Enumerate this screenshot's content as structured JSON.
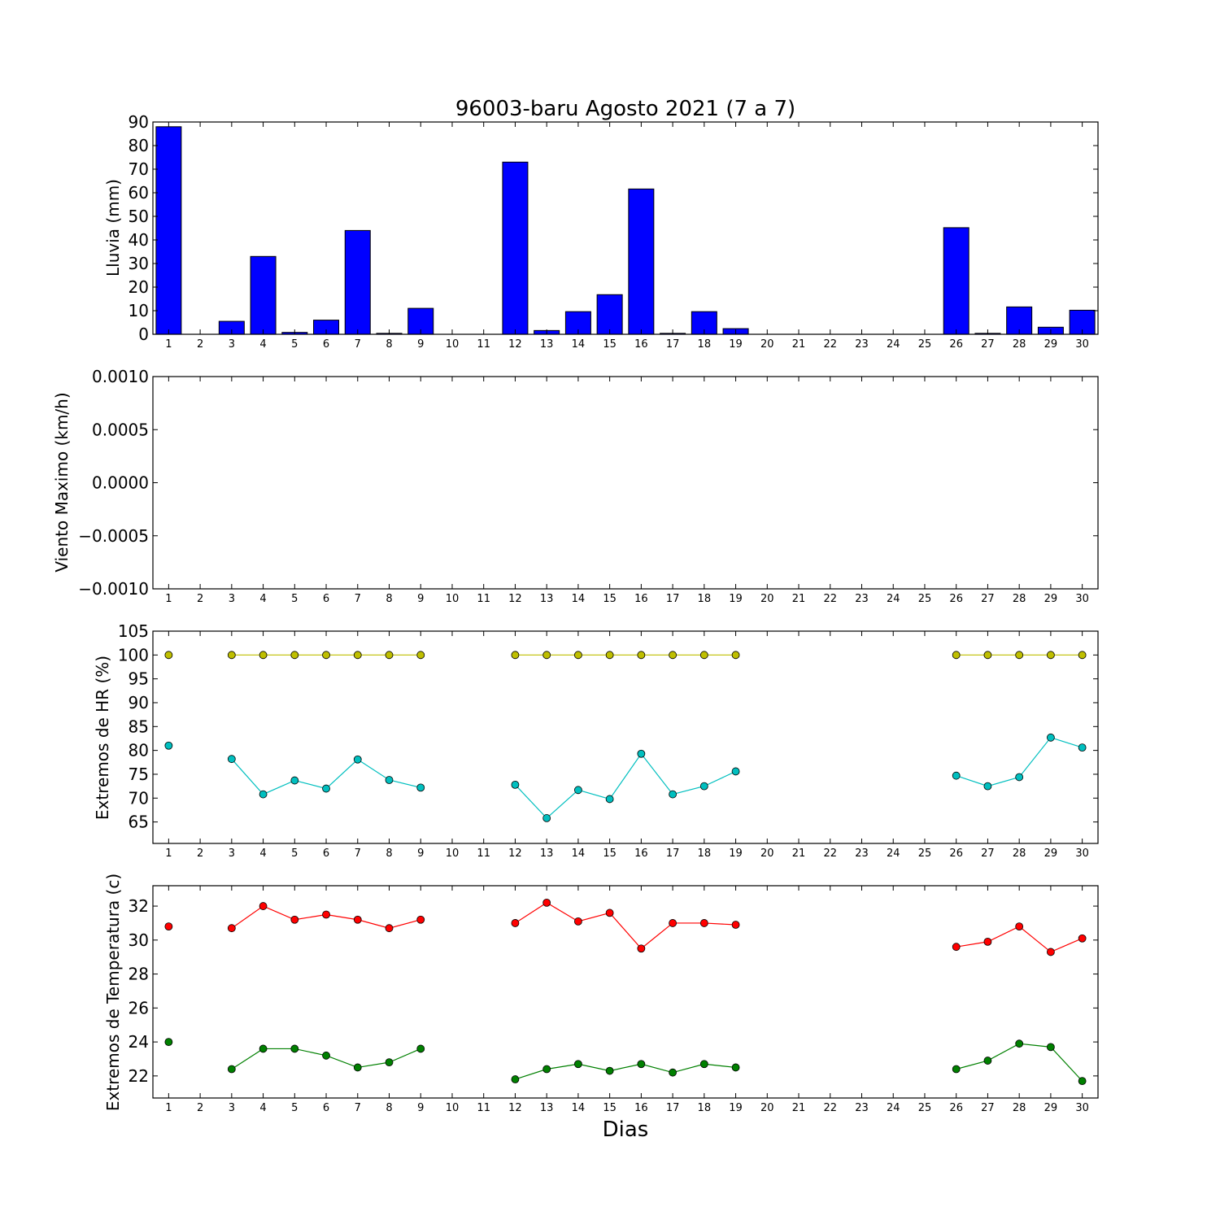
{
  "chart_data": [
    {
      "type": "bar",
      "title": "96003-baru Agosto 2021  (7 a 7)",
      "ylabel": "Lluvia (mm)",
      "xlabel": "",
      "ylim": [
        0,
        90
      ],
      "yticks": [
        "0",
        "10",
        "20",
        "30",
        "40",
        "50",
        "60",
        "70",
        "80",
        "90"
      ],
      "xticks": [
        1,
        2,
        3,
        4,
        5,
        6,
        7,
        8,
        9,
        10,
        11,
        12,
        13,
        14,
        15,
        16,
        17,
        18,
        19,
        20,
        21,
        22,
        23,
        24,
        25,
        26,
        27,
        28,
        29,
        30
      ],
      "x": [
        1,
        2,
        3,
        4,
        5,
        6,
        7,
        8,
        9,
        10,
        11,
        12,
        13,
        14,
        15,
        16,
        17,
        18,
        19,
        20,
        21,
        22,
        23,
        24,
        25,
        26,
        27,
        28,
        29,
        30
      ],
      "values": [
        88.0,
        0,
        5.5,
        33.0,
        0.8,
        6.0,
        44.0,
        0.4,
        11.0,
        0,
        0,
        73.0,
        1.6,
        9.6,
        16.8,
        61.6,
        0.4,
        9.6,
        2.4,
        0,
        0,
        0,
        0,
        0,
        0,
        45.2,
        0.4,
        11.6,
        3.0,
        10.2
      ],
      "color": "#0000ff"
    },
    {
      "type": "line",
      "ylabel": "Viento Maximo (km/h)",
      "xlabel": "",
      "ylim": [
        -0.001,
        0.001
      ],
      "yticks": [
        "−0.0010",
        "−0.0005",
        "0.0000",
        "0.0005",
        "0.0010"
      ],
      "xticks": [
        1,
        2,
        3,
        4,
        5,
        6,
        7,
        8,
        9,
        10,
        11,
        12,
        13,
        14,
        15,
        16,
        17,
        18,
        19,
        20,
        21,
        22,
        23,
        24,
        25,
        26,
        27,
        28,
        29,
        30
      ],
      "series": []
    },
    {
      "type": "line",
      "ylabel": "Extremos de HR (%)",
      "xlabel": "",
      "ylim": [
        60.5,
        105
      ],
      "yticks": [
        "65",
        "70",
        "75",
        "80",
        "85",
        "90",
        "95",
        "100",
        "105"
      ],
      "xticks": [
        1,
        2,
        3,
        4,
        5,
        6,
        7,
        8,
        9,
        10,
        11,
        12,
        13,
        14,
        15,
        16,
        17,
        18,
        19,
        20,
        21,
        22,
        23,
        24,
        25,
        26,
        27,
        28,
        29,
        30
      ],
      "x": [
        1,
        2,
        3,
        4,
        5,
        6,
        7,
        8,
        9,
        10,
        11,
        12,
        13,
        14,
        15,
        16,
        17,
        18,
        19,
        20,
        21,
        22,
        23,
        24,
        25,
        26,
        27,
        28,
        29,
        30
      ],
      "series": [
        {
          "color": "#bfbf00",
          "values": [
            100,
            null,
            100,
            100,
            100,
            100,
            100,
            100,
            100,
            null,
            null,
            100,
            100,
            100,
            100,
            100,
            100,
            100,
            100,
            null,
            null,
            null,
            null,
            null,
            null,
            100,
            100,
            100,
            100,
            100
          ]
        },
        {
          "color": "#00bfbf",
          "values": [
            81.0,
            null,
            78.2,
            70.8,
            73.7,
            72.0,
            78.1,
            73.8,
            72.2,
            null,
            null,
            72.8,
            65.8,
            71.7,
            69.8,
            79.3,
            70.8,
            72.5,
            75.6,
            null,
            null,
            null,
            null,
            null,
            null,
            74.7,
            72.5,
            74.4,
            82.7,
            80.6
          ]
        }
      ]
    },
    {
      "type": "line",
      "ylabel": "Extremos de Temperatura (c)",
      "xlabel": "Dias",
      "ylim": [
        20.7,
        33.2
      ],
      "yticks": [
        "22",
        "24",
        "26",
        "28",
        "30",
        "32"
      ],
      "xticks": [
        1,
        2,
        3,
        4,
        5,
        6,
        7,
        8,
        9,
        10,
        11,
        12,
        13,
        14,
        15,
        16,
        17,
        18,
        19,
        20,
        21,
        22,
        23,
        24,
        25,
        26,
        27,
        28,
        29,
        30
      ],
      "x": [
        1,
        2,
        3,
        4,
        5,
        6,
        7,
        8,
        9,
        10,
        11,
        12,
        13,
        14,
        15,
        16,
        17,
        18,
        19,
        20,
        21,
        22,
        23,
        24,
        25,
        26,
        27,
        28,
        29,
        30
      ],
      "series": [
        {
          "color": "#ff0000",
          "values": [
            30.8,
            null,
            30.7,
            32.0,
            31.2,
            31.5,
            31.2,
            30.7,
            31.2,
            null,
            null,
            31.0,
            32.2,
            31.1,
            31.6,
            29.5,
            31.0,
            31.0,
            30.9,
            null,
            null,
            null,
            null,
            null,
            null,
            29.6,
            29.9,
            30.8,
            29.3,
            30.1
          ]
        },
        {
          "color": "#008000",
          "values": [
            24.0,
            null,
            22.4,
            23.6,
            23.6,
            23.2,
            22.5,
            22.8,
            23.6,
            null,
            null,
            21.8,
            22.4,
            22.7,
            22.3,
            22.7,
            22.2,
            22.7,
            22.5,
            null,
            null,
            null,
            null,
            null,
            null,
            22.4,
            22.9,
            23.9,
            23.7,
            21.7
          ]
        }
      ]
    }
  ]
}
